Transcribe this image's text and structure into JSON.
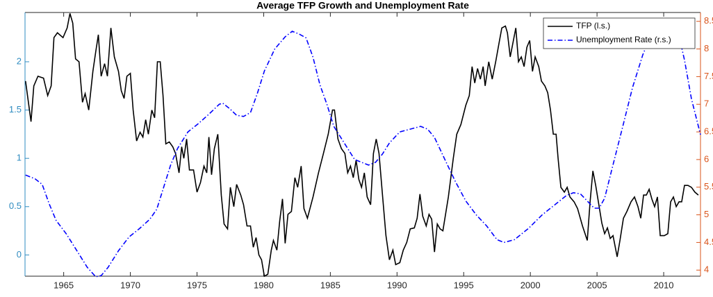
{
  "chart_data": {
    "type": "line",
    "title": "Average TFP Growth and Unemployment Rate",
    "xlim": [
      1962.1,
      2012.76
    ],
    "xticks": [
      1965,
      1970,
      1975,
      1980,
      1985,
      1990,
      1995,
      2000,
      2005,
      2010
    ],
    "ylim": [
      -0.22,
      2.51
    ],
    "yticks": [
      0,
      0.5,
      1,
      1.5,
      2
    ],
    "y2lim": [
      3.89,
      8.66
    ],
    "y2ticks": [
      4,
      4.5,
      5,
      5.5,
      6,
      6.5,
      7,
      7.5,
      8,
      8.5
    ],
    "y_color": "#2e8bc0",
    "y2_color": "#d95319",
    "legend": "upper right",
    "series": [
      {
        "name": "TFP (l.s.)",
        "color": "#000000",
        "axis": "y",
        "style": "solid",
        "x": [
          1962.14,
          1962.55,
          1962.76,
          1963.07,
          1963.49,
          1963.8,
          1964.06,
          1964.27,
          1964.53,
          1964.95,
          1965.26,
          1965.47,
          1965.68,
          1965.89,
          1966.15,
          1966.41,
          1966.61,
          1966.88,
          1967.19,
          1967.4,
          1967.6,
          1967.81,
          1968.07,
          1968.28,
          1968.54,
          1968.8,
          1969.11,
          1969.32,
          1969.53,
          1969.74,
          1970.0,
          1970.21,
          1970.47,
          1970.73,
          1970.94,
          1971.15,
          1971.35,
          1971.61,
          1971.82,
          1972.03,
          1972.24,
          1972.45,
          1972.66,
          1972.92,
          1973.18,
          1973.39,
          1973.65,
          1973.85,
          1974.01,
          1974.22,
          1974.43,
          1974.74,
          1975.0,
          1975.26,
          1975.52,
          1975.73,
          1975.89,
          1976.09,
          1976.3,
          1976.56,
          1976.82,
          1977.03,
          1977.29,
          1977.5,
          1977.76,
          1977.97,
          1978.28,
          1978.49,
          1978.75,
          1979.01,
          1979.22,
          1979.43,
          1979.64,
          1979.84,
          1980.05,
          1980.31,
          1980.57,
          1980.73,
          1980.99,
          1981.2,
          1981.41,
          1981.61,
          1981.82,
          1982.08,
          1982.34,
          1982.55,
          1982.81,
          1983.02,
          1983.28,
          1983.7,
          1984.11,
          1984.48,
          1984.84,
          1985.16,
          1985.31,
          1985.57,
          1985.83,
          1986.09,
          1986.3,
          1986.51,
          1986.72,
          1986.93,
          1987.14,
          1987.34,
          1987.55,
          1987.76,
          1988.02,
          1988.23,
          1988.44,
          1988.65,
          1988.91,
          1989.17,
          1989.43,
          1989.69,
          1989.9,
          1990.21,
          1990.47,
          1990.73,
          1990.99,
          1991.3,
          1991.51,
          1991.72,
          1991.93,
          1992.19,
          1992.4,
          1992.6,
          1992.81,
          1993.02,
          1993.23,
          1993.44,
          1993.85,
          1994.22,
          1994.48,
          1994.79,
          1995.16,
          1995.42,
          1995.63,
          1995.83,
          1996.04,
          1996.25,
          1996.46,
          1996.61,
          1996.88,
          1997.14,
          1997.4,
          1997.66,
          1997.86,
          1998.13,
          1998.28,
          1998.49,
          1998.7,
          1998.91,
          1999.11,
          1999.32,
          1999.53,
          1999.74,
          1999.95,
          2000.16,
          2000.36,
          2000.63,
          2000.83,
          2001.09,
          2001.3,
          2001.51,
          2001.72,
          2001.93,
          2002.08,
          2002.29,
          2002.55,
          2002.76,
          2002.97,
          2003.28,
          2003.54,
          2003.91,
          2004.27,
          2004.48,
          2004.69,
          2004.9,
          2005.16,
          2005.36,
          2005.57,
          2005.78,
          2005.99,
          2006.2,
          2006.51,
          2006.72,
          2006.98,
          2007.24,
          2007.55,
          2007.81,
          2008.07,
          2008.28,
          2008.49,
          2008.7,
          2008.91,
          2009.11,
          2009.32,
          2009.53,
          2009.74,
          2010.05,
          2010.31,
          2010.52,
          2010.73,
          2010.94,
          2011.15,
          2011.35,
          2011.56,
          2011.82,
          2012.08,
          2012.34,
          2012.6
        ],
        "values": [
          1.8,
          1.38,
          1.75,
          1.85,
          1.83,
          1.65,
          1.75,
          2.25,
          2.3,
          2.25,
          2.35,
          2.5,
          2.4,
          2.03,
          2.0,
          1.58,
          1.67,
          1.5,
          1.9,
          2.1,
          2.28,
          1.85,
          1.98,
          1.85,
          2.35,
          2.05,
          1.9,
          1.7,
          1.62,
          1.85,
          1.88,
          1.5,
          1.18,
          1.27,
          1.22,
          1.4,
          1.25,
          1.5,
          1.42,
          2.0,
          2.0,
          1.65,
          1.15,
          1.17,
          1.12,
          1.05,
          0.85,
          1.12,
          1.0,
          1.2,
          0.88,
          0.88,
          0.65,
          0.75,
          0.92,
          0.85,
          1.22,
          0.83,
          1.1,
          1.25,
          0.62,
          0.32,
          0.27,
          0.7,
          0.5,
          0.73,
          0.62,
          0.52,
          0.3,
          0.3,
          0.08,
          0.18,
          0.0,
          -0.05,
          -0.22,
          -0.2,
          0.05,
          0.15,
          0.05,
          0.35,
          0.58,
          0.12,
          0.42,
          0.45,
          0.8,
          0.7,
          0.92,
          0.48,
          0.38,
          0.6,
          0.85,
          1.05,
          1.25,
          1.5,
          1.5,
          1.2,
          1.1,
          1.05,
          0.85,
          0.92,
          0.8,
          0.98,
          0.78,
          0.7,
          0.85,
          0.6,
          0.52,
          1.05,
          1.2,
          1.05,
          0.62,
          0.2,
          -0.05,
          0.05,
          -0.1,
          -0.08,
          0.05,
          0.13,
          0.27,
          0.28,
          0.38,
          0.63,
          0.4,
          0.3,
          0.42,
          0.37,
          0.03,
          0.32,
          0.27,
          0.25,
          0.6,
          1.0,
          1.25,
          1.35,
          1.55,
          1.65,
          1.95,
          1.78,
          1.93,
          1.82,
          1.95,
          1.75,
          2.0,
          1.82,
          2.0,
          2.2,
          2.35,
          2.37,
          2.3,
          2.05,
          2.2,
          2.35,
          2.0,
          2.05,
          1.95,
          2.15,
          2.22,
          1.9,
          2.05,
          1.95,
          1.8,
          1.75,
          1.68,
          1.5,
          1.25,
          1.25,
          1.0,
          0.7,
          0.65,
          0.7,
          0.6,
          0.55,
          0.48,
          0.3,
          0.15,
          0.55,
          0.87,
          0.72,
          0.5,
          0.33,
          0.22,
          0.28,
          0.17,
          0.2,
          -0.02,
          0.15,
          0.38,
          0.45,
          0.55,
          0.6,
          0.5,
          0.38,
          0.62,
          0.62,
          0.68,
          0.58,
          0.5,
          0.6,
          0.2,
          0.2,
          0.22,
          0.55,
          0.6,
          0.5,
          0.55,
          0.55,
          0.72,
          0.72,
          0.7,
          0.65,
          0.62
        ]
      },
      {
        "name": "Unemployment Rate (r.s.)",
        "color": "#0000ff",
        "axis": "y2",
        "style": "dashdot",
        "x": [
          1962.14,
          1962.86,
          1963.39,
          1963.91,
          1964.43,
          1965.21,
          1965.99,
          1966.77,
          1967.4,
          1967.81,
          1968.33,
          1969.11,
          1969.9,
          1970.68,
          1971.46,
          1971.98,
          1972.5,
          1973.02,
          1973.54,
          1974.32,
          1975.1,
          1975.89,
          1976.67,
          1976.93,
          1977.45,
          1977.97,
          1978.49,
          1979.01,
          1979.53,
          1980.05,
          1980.83,
          1981.61,
          1982.14,
          1982.66,
          1983.18,
          1983.7,
          1984.22,
          1984.74,
          1985.26,
          1985.78,
          1986.3,
          1986.82,
          1987.34,
          1987.86,
          1988.39,
          1988.91,
          1989.43,
          1990.21,
          1990.99,
          1991.77,
          1992.29,
          1992.81,
          1993.59,
          1994.38,
          1995.16,
          1995.94,
          1996.72,
          1997.5,
          1998.02,
          1998.8,
          1999.84,
          2000.89,
          2001.93,
          2002.71,
          2003.23,
          2003.75,
          2004.27,
          2004.79,
          2005.16,
          2005.57,
          2006.09,
          2006.88,
          2007.66,
          2008.44,
          2009.22,
          2010.0,
          2010.52,
          2011.04,
          2011.56,
          2012.08,
          2012.76
        ],
        "values": [
          5.72,
          5.65,
          5.55,
          5.2,
          4.9,
          4.65,
          4.35,
          4.05,
          3.88,
          3.9,
          4.05,
          4.35,
          4.6,
          4.75,
          4.92,
          5.1,
          5.5,
          5.9,
          6.2,
          6.5,
          6.65,
          6.82,
          7.0,
          7.02,
          6.92,
          6.8,
          6.78,
          6.85,
          7.2,
          7.6,
          8.0,
          8.22,
          8.32,
          8.27,
          8.2,
          7.85,
          7.35,
          7.0,
          6.6,
          6.4,
          6.2,
          6.0,
          5.95,
          5.9,
          5.95,
          6.1,
          6.3,
          6.5,
          6.55,
          6.6,
          6.55,
          6.4,
          6.0,
          5.6,
          5.25,
          5.0,
          4.8,
          4.55,
          4.5,
          4.55,
          4.75,
          5.0,
          5.2,
          5.35,
          5.4,
          5.38,
          5.25,
          5.12,
          5.12,
          5.3,
          5.8,
          6.55,
          7.3,
          7.9,
          8.35,
          8.52,
          8.55,
          8.35,
          7.8,
          7.1,
          6.45
        ]
      }
    ]
  }
}
